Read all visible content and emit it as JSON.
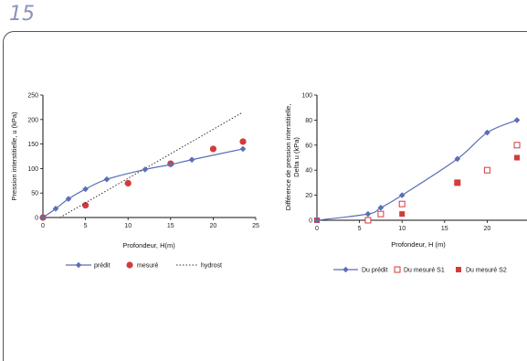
{
  "page_number": "15",
  "chart_data": [
    {
      "type": "line",
      "title": "",
      "xlabel": "Profondeur, H(m)",
      "ylabel": "Pression interstitielle, u (kPa)",
      "xlim": [
        0,
        25
      ],
      "ylim": [
        0,
        250
      ],
      "xticks": [
        "0",
        "5",
        "10",
        "15",
        "20",
        "25"
      ],
      "yticks": [
        "0",
        "50",
        "100",
        "150",
        "200",
        "250"
      ],
      "grid": false,
      "legend_position": "bottom",
      "series": [
        {
          "name": "prédit",
          "style": "line-diamond",
          "color": "#5a6fb5",
          "x": [
            0,
            1.5,
            3,
            5,
            7.5,
            12,
            15,
            17.5,
            23.5
          ],
          "y": [
            0,
            18,
            38,
            58,
            78,
            98,
            108,
            118,
            140
          ]
        },
        {
          "name": "mesuré",
          "style": "circle",
          "color": "#d43a3a",
          "x": [
            0,
            5,
            10,
            15,
            20,
            23.5
          ],
          "y": [
            0,
            25,
            70,
            110,
            140,
            155
          ]
        },
        {
          "name": "hydrost",
          "style": "dotted",
          "color": "#333333",
          "x": [
            0,
            23.5
          ],
          "y": [
            -20,
            215
          ]
        }
      ]
    },
    {
      "type": "scatter",
      "title": "",
      "xlabel": "Profondeur, H (m)",
      "ylabel": "Différence de pression interstitielle, Delta u (kPa)",
      "xlim": [
        0,
        25
      ],
      "ylim": [
        0,
        100
      ],
      "xticks": [
        "0",
        "5",
        "10",
        "15",
        "20",
        "2"
      ],
      "yticks": [
        "0",
        "20",
        "40",
        "60",
        "80",
        "100"
      ],
      "grid": false,
      "legend_position": "bottom",
      "series": [
        {
          "name": "Du prédit",
          "style": "line-diamond",
          "color": "#5a6fb5",
          "x": [
            0,
            6,
            7.5,
            10,
            16.5,
            20,
            23.5
          ],
          "y": [
            0,
            5,
            10,
            20,
            49,
            70,
            80
          ]
        },
        {
          "name": "Du mesuré S1",
          "style": "open-square",
          "color": "#d43a3a",
          "x": [
            6,
            7.5,
            10,
            16.5,
            20,
            23.5
          ],
          "y": [
            0,
            5,
            13,
            30,
            40,
            60
          ]
        },
        {
          "name": "Du mesuré S2",
          "style": "filled-square",
          "color": "#d43a3a",
          "x": [
            0,
            10,
            16.5,
            23.5
          ],
          "y": [
            0,
            5,
            30,
            50
          ]
        }
      ]
    }
  ]
}
